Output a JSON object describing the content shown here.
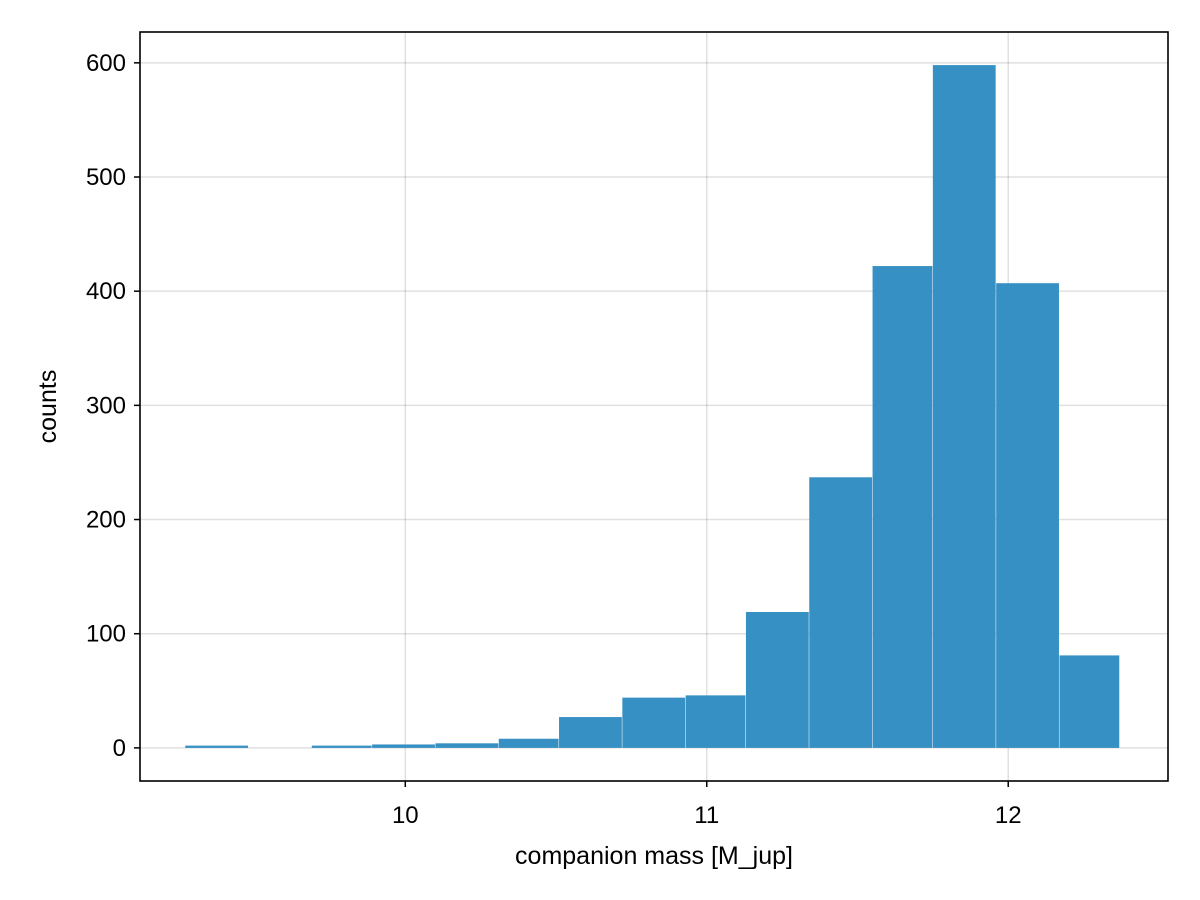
{
  "chart_data": {
    "type": "bar",
    "subtype": "histogram",
    "title": "",
    "xlabel": "companion mass [M_jup]",
    "ylabel": "counts",
    "xlim": [
      9.12,
      12.53
    ],
    "ylim": [
      -29,
      627
    ],
    "xticks": [
      10,
      11,
      12
    ],
    "xtick_labels": [
      "10",
      "11",
      "12"
    ],
    "yticks": [
      0,
      100,
      200,
      300,
      400,
      500,
      600
    ],
    "ytick_labels": [
      "0",
      "100",
      "200",
      "300",
      "400",
      "500",
      "600"
    ],
    "grid": true,
    "bar_color": "#3690c3",
    "bins": [
      {
        "x0": 9.27,
        "x1": 9.48,
        "count": 2
      },
      {
        "x0": 9.48,
        "x1": 9.69,
        "count": 0
      },
      {
        "x0": 9.69,
        "x1": 9.89,
        "count": 2
      },
      {
        "x0": 9.89,
        "x1": 10.1,
        "count": 3
      },
      {
        "x0": 10.1,
        "x1": 10.31,
        "count": 4
      },
      {
        "x0": 10.31,
        "x1": 10.51,
        "count": 8
      },
      {
        "x0": 10.51,
        "x1": 10.72,
        "count": 27
      },
      {
        "x0": 10.72,
        "x1": 10.93,
        "count": 44
      },
      {
        "x0": 10.93,
        "x1": 11.13,
        "count": 46
      },
      {
        "x0": 11.13,
        "x1": 11.34,
        "count": 119
      },
      {
        "x0": 11.34,
        "x1": 11.55,
        "count": 237
      },
      {
        "x0": 11.55,
        "x1": 11.75,
        "count": 422
      },
      {
        "x0": 11.75,
        "x1": 11.96,
        "count": 598
      },
      {
        "x0": 11.96,
        "x1": 12.17,
        "count": 407
      },
      {
        "x0": 12.17,
        "x1": 12.37,
        "count": 81
      }
    ]
  }
}
